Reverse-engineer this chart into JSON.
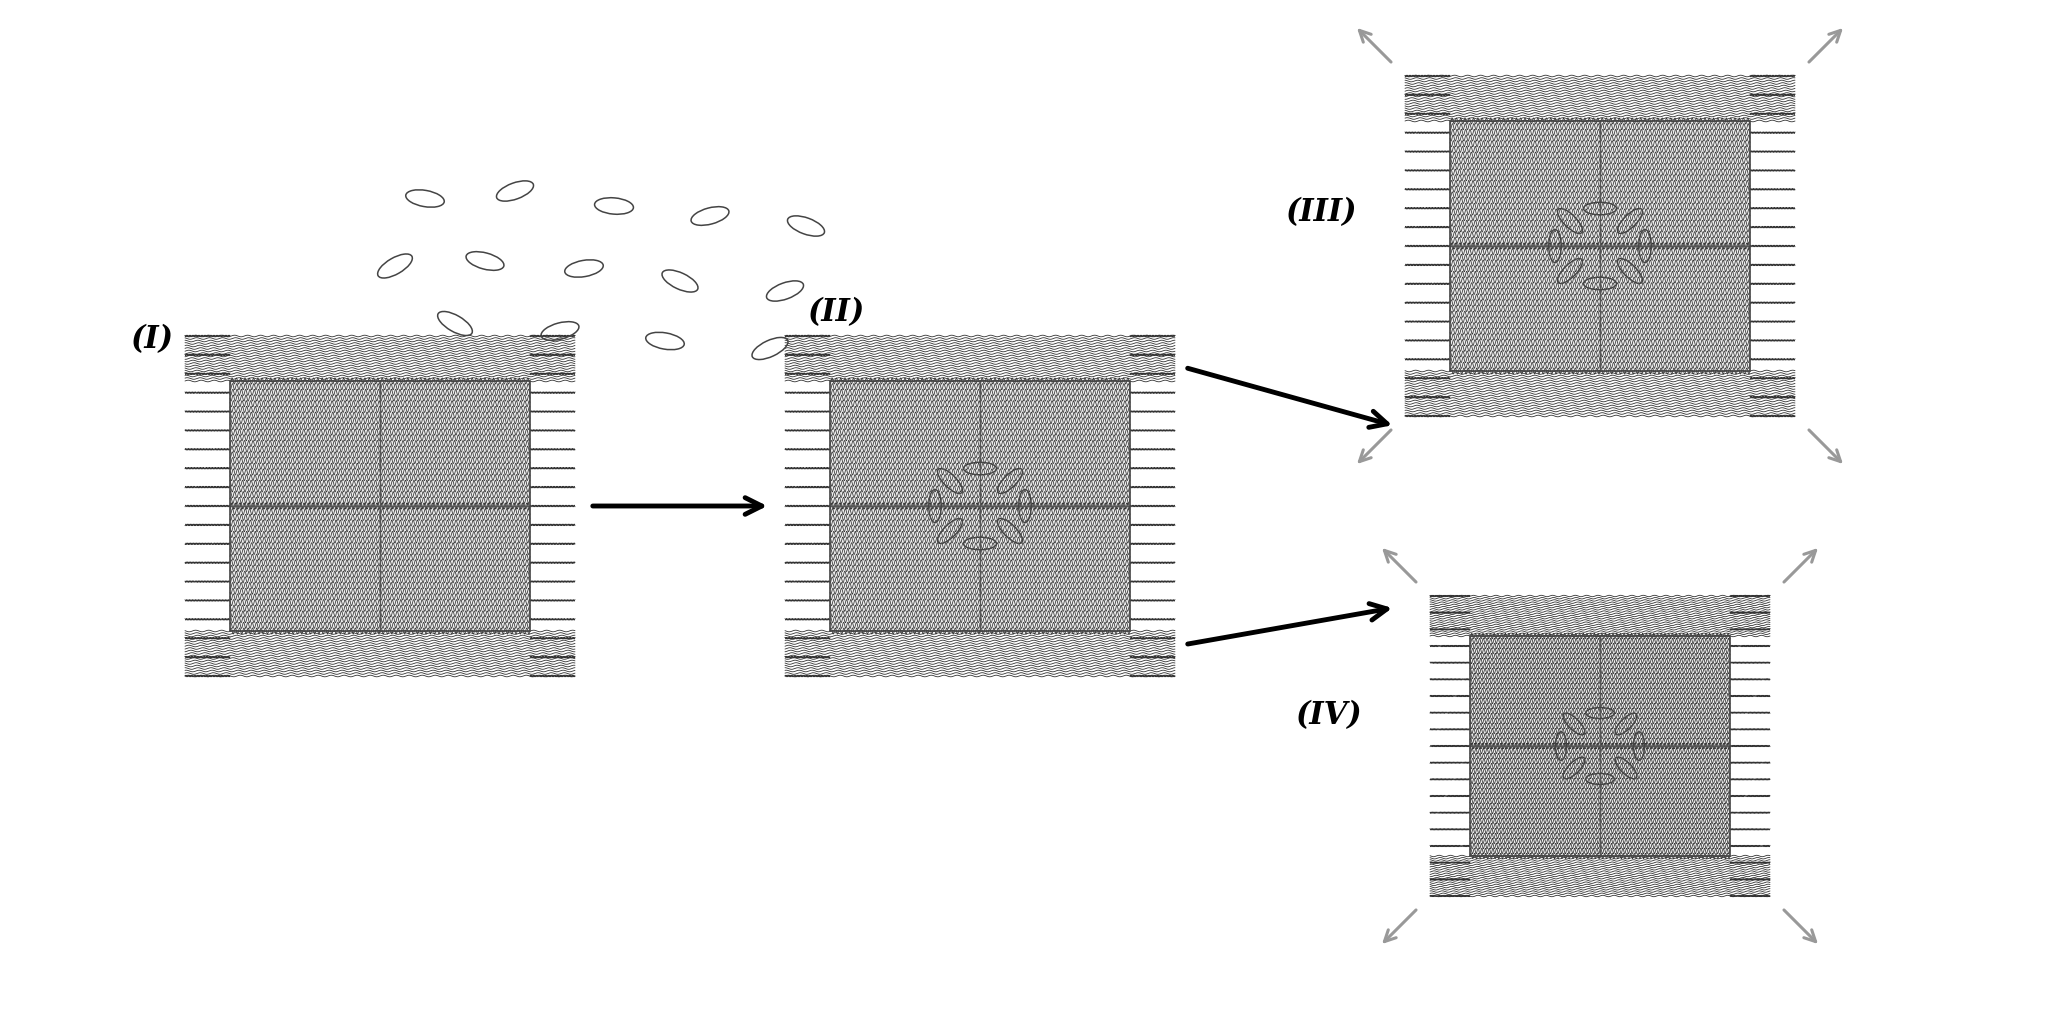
{
  "fig_width": 20.51,
  "fig_height": 10.26,
  "bg_color": "#ffffff",
  "label_I": "(I)",
  "label_II": "(II)",
  "label_III": "(III)",
  "label_IV": "(IV)",
  "label_fontsize": 22,
  "label_fontweight": "bold",
  "arrow_color": "#111111",
  "wavy_color": "#333333",
  "hollow_arrow_color": "#999999",
  "molecule_color": "#444444"
}
